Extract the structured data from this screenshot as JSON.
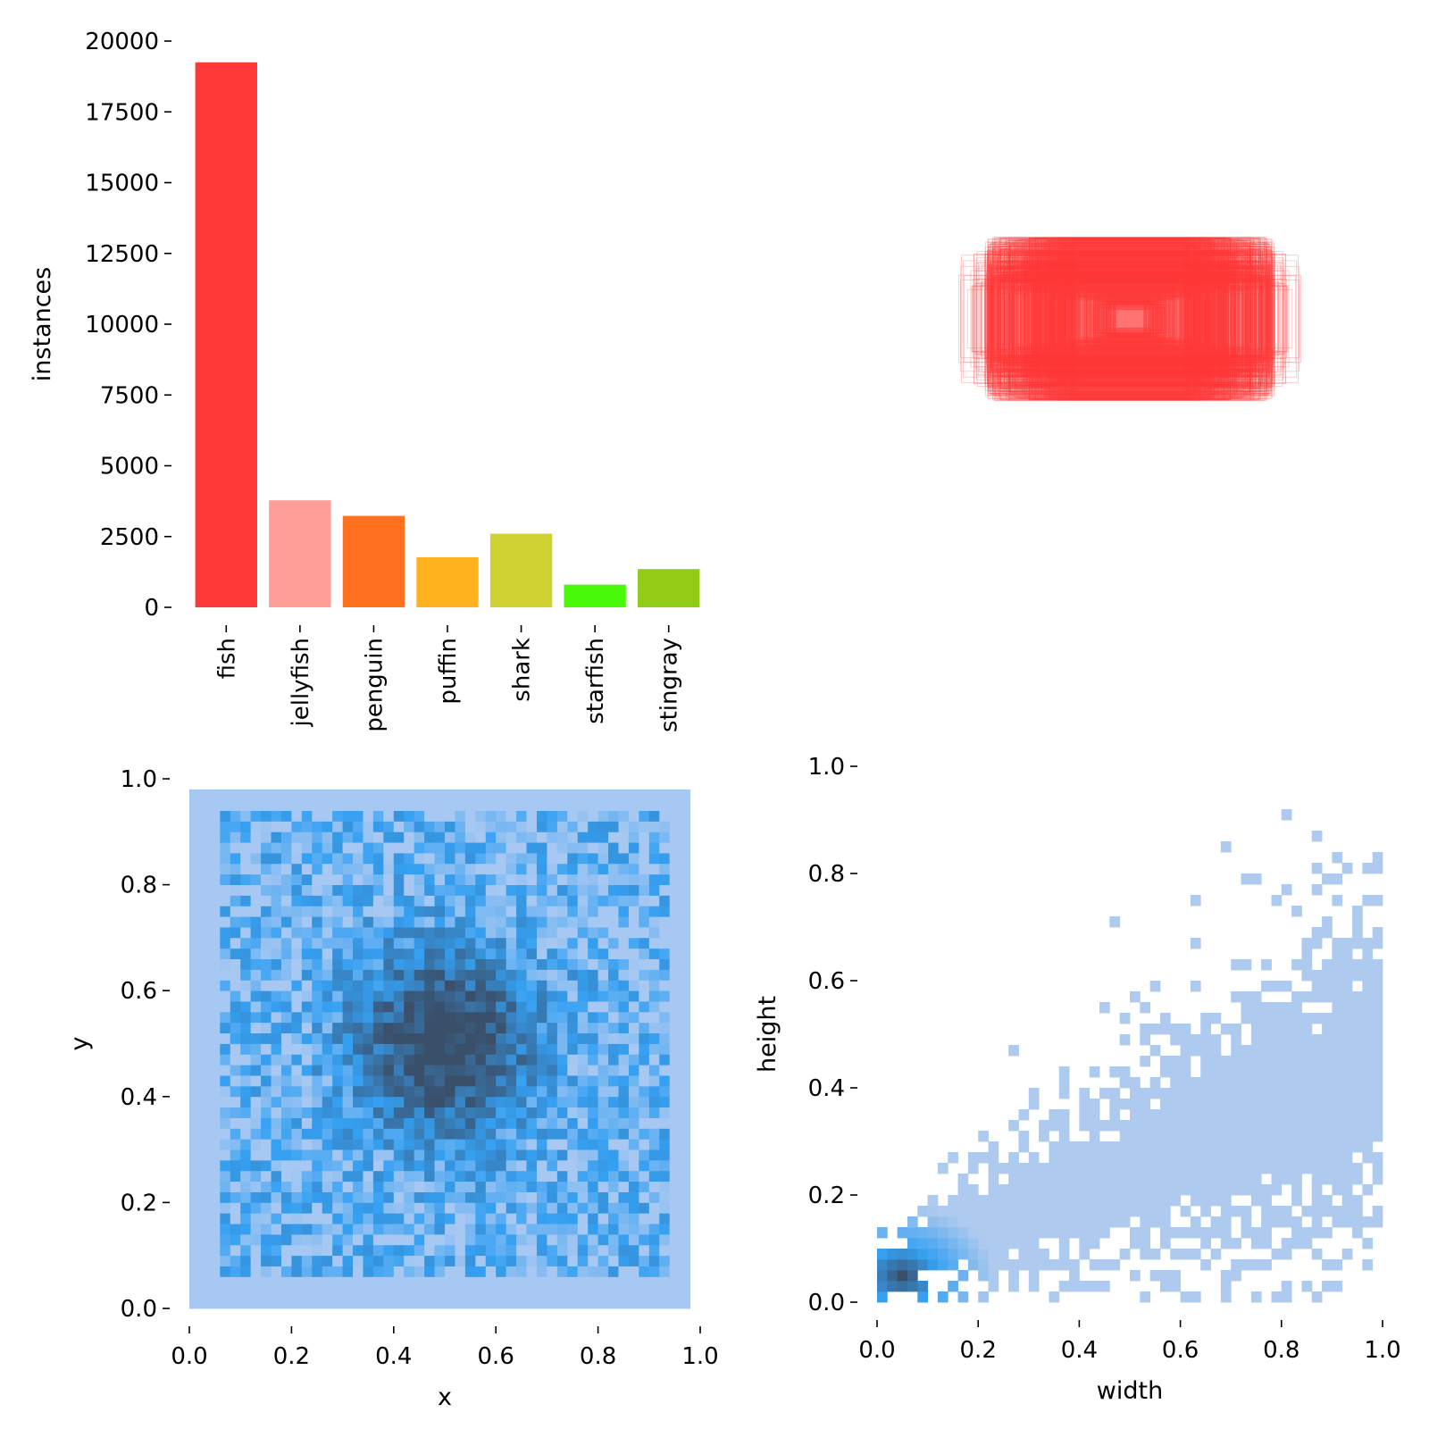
{
  "chart_data": [
    {
      "type": "bar",
      "title": "",
      "xlabel": "",
      "ylabel": "instances",
      "categories": [
        "fish",
        "jellyfish",
        "penguin",
        "puffin",
        "shark",
        "starfish",
        "stingray"
      ],
      "values": [
        19250,
        3780,
        3230,
        1770,
        2600,
        800,
        1350
      ],
      "colors": [
        "#ff3838",
        "#ff9d97",
        "#ff701f",
        "#ffb21d",
        "#cfd231",
        "#48f90a",
        "#92cc17"
      ],
      "ylim": [
        0,
        20000
      ],
      "yticks": [
        "0",
        "2500",
        "5000",
        "7500",
        "10000",
        "12500",
        "15000",
        "17500",
        "20000"
      ],
      "grid": false
    },
    {
      "type": "scatter",
      "title": "",
      "description_kind": "box-outline-overlay",
      "color": "#ff3838",
      "xlim": [
        0,
        1
      ],
      "ylim": [
        0,
        1
      ],
      "axes_visible": false,
      "boxes_sample": [
        {
          "w": 0.15,
          "h": 0.1
        },
        {
          "w": 0.2,
          "h": 0.12
        },
        {
          "w": 0.25,
          "h": 0.15
        },
        {
          "w": 0.3,
          "h": 0.18
        },
        {
          "w": 0.4,
          "h": 0.2
        },
        {
          "w": 0.5,
          "h": 0.24
        },
        {
          "w": 0.6,
          "h": 0.26
        },
        {
          "w": 0.7,
          "h": 0.3
        },
        {
          "w": 0.8,
          "h": 0.28
        },
        {
          "w": 0.9,
          "h": 0.32
        },
        {
          "w": 0.95,
          "h": 0.38
        },
        {
          "w": 0.78,
          "h": 0.4
        }
      ]
    },
    {
      "type": "heatmap",
      "title": "",
      "xlabel": "x",
      "ylabel": "y",
      "xlim": [
        0,
        1
      ],
      "ylim": [
        0,
        1
      ],
      "xticks": [
        "0.0",
        "0.2",
        "0.4",
        "0.6",
        "0.8",
        "1.0"
      ],
      "yticks": [
        "0.0",
        "0.2",
        "0.4",
        "0.6",
        "0.8",
        "1.0"
      ],
      "bins": 50,
      "data_range": [
        0.0,
        1.0
      ],
      "peak_center": [
        0.5,
        0.5
      ],
      "color_light": "#a6c8f2",
      "color_mid": "#35a0f2",
      "color_dark": "#3a4f6a"
    },
    {
      "type": "heatmap",
      "title": "",
      "xlabel": "width",
      "ylabel": "height",
      "xlim": [
        0,
        1
      ],
      "ylim": [
        0,
        1
      ],
      "xticks": [
        "0.0",
        "0.2",
        "0.4",
        "0.6",
        "0.8",
        "1.0"
      ],
      "yticks": [
        "0.0",
        "0.2",
        "0.4",
        "0.6",
        "0.8",
        "1.0"
      ],
      "bins": 50,
      "peak_center": [
        0.05,
        0.05
      ],
      "trend_slope": 0.38,
      "color_light": "#aecaee",
      "color_mid": "#35a0f2",
      "color_dark": "#3a4f6a"
    }
  ]
}
